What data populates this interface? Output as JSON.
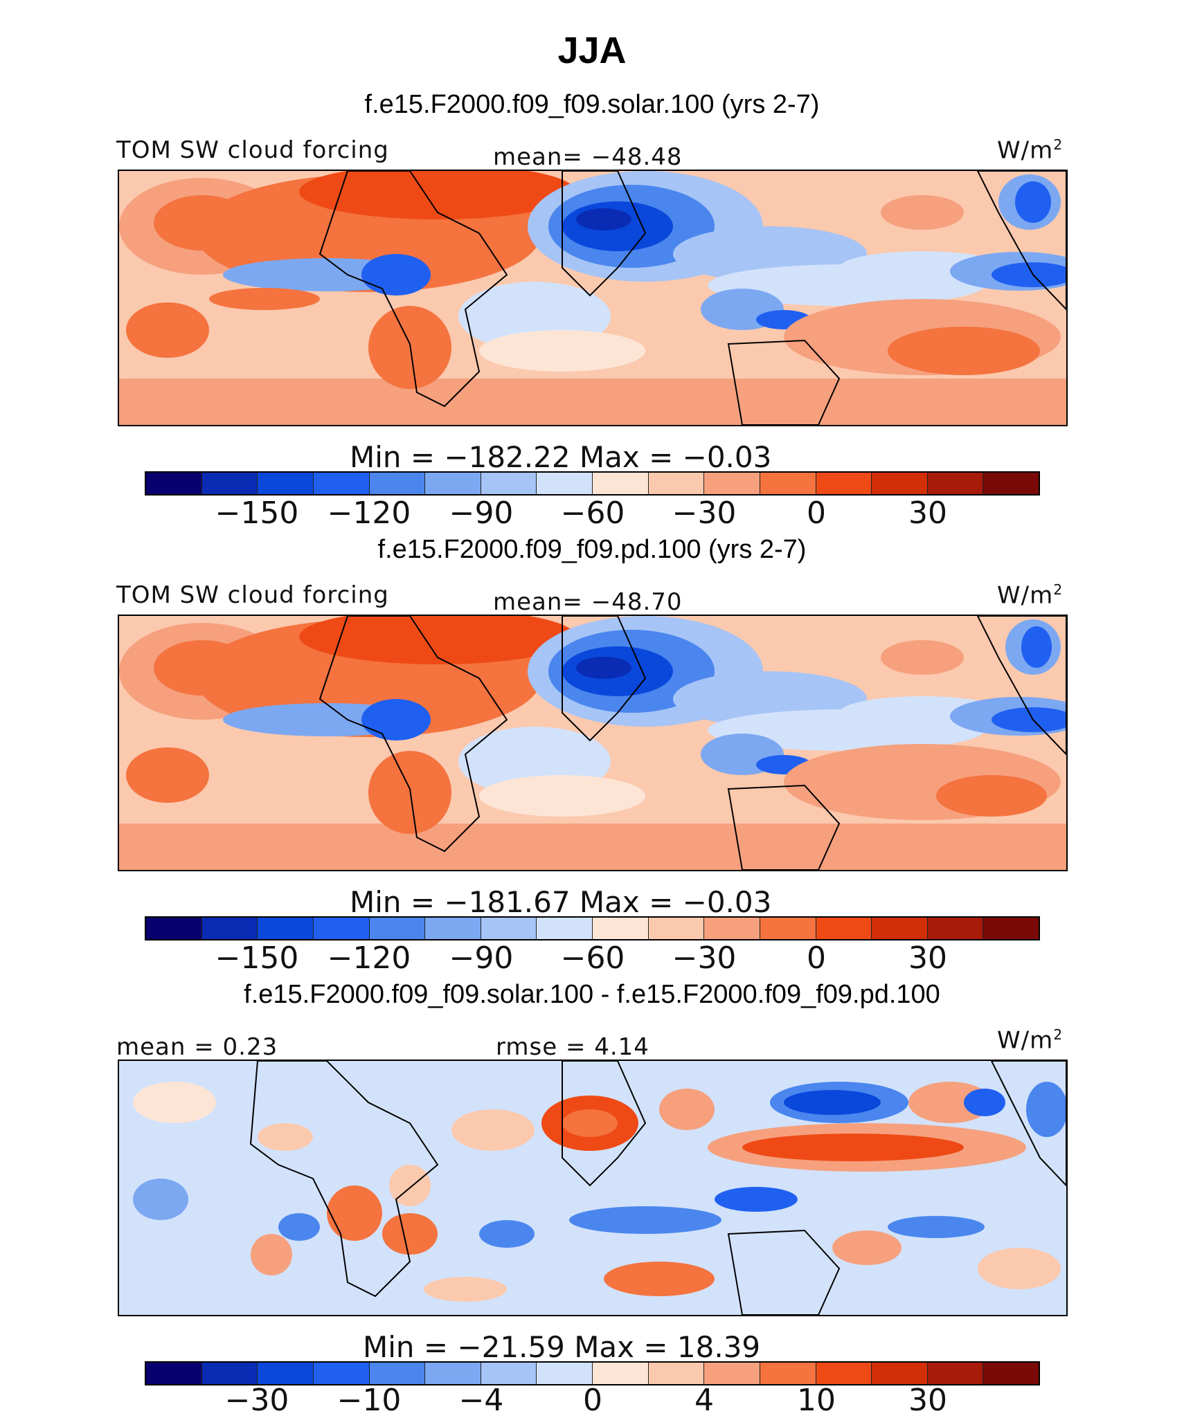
{
  "title": "JJA",
  "colors": {
    "palette": [
      "#08006e",
      "#0a2cb4",
      "#0a48dc",
      "#2060f0",
      "#4a86ee",
      "#7ca8f2",
      "#a6c4f6",
      "#d2e2fb",
      "#fde5d6",
      "#fbc9ae",
      "#f6a07e",
      "#f4733f",
      "#ef4a16",
      "#d22e08",
      "#a81a0a",
      "#7a0a08"
    ],
    "background_warm": "#fbd6c6",
    "coast": "#000000"
  },
  "panels": [
    {
      "case_title": "f.e15.F2000.f09_f09.solar.100 (yrs 2-7)",
      "variable": "TOM SW cloud forcing",
      "stat1": "mean= −48.48",
      "stat2": "",
      "units": "W/m",
      "units_sup": "2",
      "minmax": "Min  =  −182.22  Max  =    −0.03",
      "tick_labels": [
        "−150",
        "−120",
        "−90",
        "−60",
        "−30",
        "0",
        "30"
      ]
    },
    {
      "case_title": "f.e15.F2000.f09_f09.pd.100 (yrs 2-7)",
      "variable": "TOM SW cloud forcing",
      "stat1": "mean= −48.70",
      "stat2": "",
      "units": "W/m",
      "units_sup": "2",
      "minmax": "Min  =  −181.67  Max  =    −0.03",
      "tick_labels": [
        "−150",
        "−120",
        "−90",
        "−60",
        "−30",
        "0",
        "30"
      ]
    },
    {
      "case_title": "f.e15.F2000.f09_f09.solar.100 - f.e15.F2000.f09_f09.pd.100",
      "variable": "",
      "stat1": "mean =    0.23",
      "stat2": "rmse =    4.14",
      "units": "W/m",
      "units_sup": "2",
      "minmax": "Min  =  −21.59  Max  =    18.39",
      "tick_labels": [
        "−30",
        "−10",
        "−4",
        "0",
        "4",
        "10",
        "30"
      ]
    }
  ],
  "chart_data": [
    {
      "type": "heatmap",
      "title": "f.e15.F2000.f09_f09.solar.100 (yrs 2-7)",
      "variable": "TOM SW cloud forcing",
      "units": "W/m2",
      "season": "JJA",
      "mean": -48.48,
      "min": -182.22,
      "max": -0.03,
      "color_levels": 16,
      "colorbar_ticks": [
        -150,
        -120,
        -90,
        -60,
        -30,
        0,
        30
      ],
      "lon_range": [
        0,
        360
      ],
      "lat_range": [
        -45,
        45
      ]
    },
    {
      "type": "heatmap",
      "title": "f.e15.F2000.f09_f09.pd.100 (yrs 2-7)",
      "variable": "TOM SW cloud forcing",
      "units": "W/m2",
      "season": "JJA",
      "mean": -48.7,
      "min": -181.67,
      "max": -0.03,
      "color_levels": 16,
      "colorbar_ticks": [
        -150,
        -120,
        -90,
        -60,
        -30,
        0,
        30
      ],
      "lon_range": [
        0,
        360
      ],
      "lat_range": [
        -45,
        45
      ]
    },
    {
      "type": "heatmap",
      "title": "f.e15.F2000.f09_f09.solar.100 - f.e15.F2000.f09_f09.pd.100",
      "units": "W/m2",
      "season": "JJA",
      "mean": 0.23,
      "rmse": 4.14,
      "min": -21.59,
      "max": 18.39,
      "color_levels": 16,
      "colorbar_ticks": [
        -30,
        -10,
        -4,
        0,
        4,
        10,
        30
      ],
      "lon_range": [
        0,
        360
      ],
      "lat_range": [
        -45,
        45
      ]
    }
  ]
}
